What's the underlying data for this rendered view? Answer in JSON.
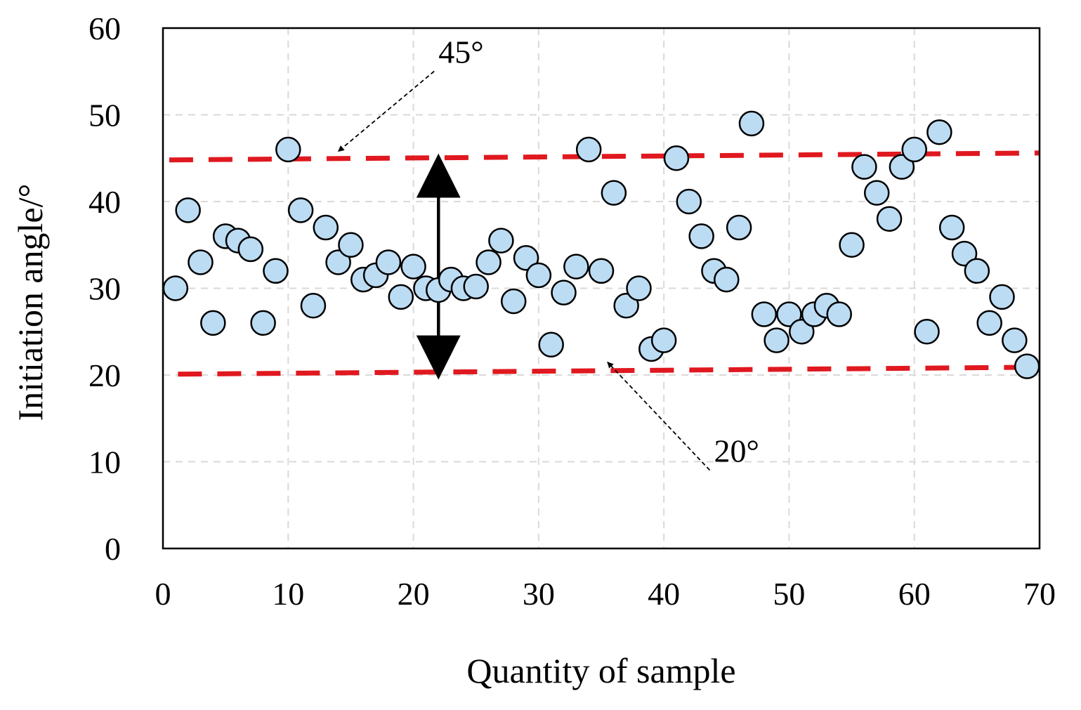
{
  "chart_data": {
    "type": "scatter",
    "title": "",
    "xlabel": "Quantity of sample",
    "ylabel": "Initiation angle/°",
    "xlim": [
      0,
      70
    ],
    "ylim": [
      0,
      60
    ],
    "xticks": [
      0,
      10,
      20,
      30,
      40,
      50,
      60,
      70
    ],
    "yticks": [
      0,
      10,
      20,
      30,
      40,
      50,
      60
    ],
    "grid": true,
    "series": [
      {
        "name": "Initiation angle",
        "color": "#bcdcf3",
        "edge_color": "#000000",
        "x": [
          1,
          2,
          3,
          4,
          5,
          6,
          7,
          8,
          9,
          10,
          11,
          12,
          13,
          14,
          15,
          16,
          17,
          18,
          19,
          20,
          21,
          22,
          23,
          24,
          25,
          26,
          27,
          28,
          29,
          30,
          31,
          32,
          33,
          34,
          35,
          36,
          37,
          38,
          39,
          40,
          41,
          42,
          43,
          44,
          45,
          46,
          47,
          48,
          49,
          50,
          51,
          52,
          53,
          54,
          55,
          56,
          57,
          58,
          59,
          60,
          61,
          62,
          63,
          64,
          65,
          66,
          67,
          68,
          69
        ],
        "y": [
          30,
          39,
          33,
          26,
          36,
          35.5,
          34.5,
          26,
          32,
          46,
          39,
          28,
          37,
          33,
          35,
          31,
          31.5,
          33,
          29,
          32.5,
          30,
          29.8,
          31,
          30,
          30.2,
          33,
          35.5,
          28.5,
          33.5,
          31.5,
          23.5,
          29.5,
          32.5,
          46,
          32,
          41,
          28,
          30,
          23,
          24,
          45,
          40,
          36,
          32,
          31,
          37,
          49,
          27,
          24,
          27,
          25,
          27,
          28,
          27,
          35,
          44,
          41,
          38,
          44,
          46,
          25,
          48,
          37,
          34,
          32,
          26,
          29,
          24,
          21
        ]
      }
    ],
    "reference_lines": [
      {
        "label": "45°",
        "color": "#e0181f",
        "x_start": 0.5,
        "y_start": 44.8,
        "x_end": 70,
        "y_end": 45.6
      },
      {
        "label": "20°",
        "color": "#e0181f",
        "x_start": 1.2,
        "y_start": 20.1,
        "x_end": 70,
        "y_end": 20.9
      }
    ],
    "range_arrow": {
      "x": 22,
      "y_top": 45,
      "y_bottom": 20
    },
    "annotations": [
      {
        "text": "45°",
        "text_x": 22,
        "text_y": 56,
        "arrow_to_x": 14,
        "arrow_to_y": 45.3
      },
      {
        "text": "20°",
        "text_x": 44,
        "text_y": 10,
        "arrow_to_x": 35.5,
        "arrow_to_y": 21
      }
    ]
  }
}
